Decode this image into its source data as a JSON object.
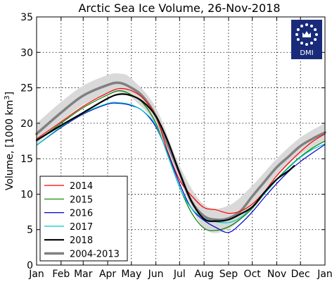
{
  "chart_data": {
    "type": "line",
    "title": "Arctic Sea Ice Volume, 26-Nov-2018",
    "xlabel": "",
    "ylabel": "Volume, [1000 km",
    "ylabel_sup": "3",
    "ylabel_suffix": "]",
    "xlim": [
      0,
      365
    ],
    "ylim": [
      0,
      35
    ],
    "grid": true,
    "legend_position": "lower-left",
    "x_ticks": [
      {
        "label": "Jan",
        "day": 0
      },
      {
        "label": "Feb",
        "day": 31
      },
      {
        "label": "Mar",
        "day": 59
      },
      {
        "label": "Apr",
        "day": 90
      },
      {
        "label": "May",
        "day": 120
      },
      {
        "label": "Jun",
        "day": 151
      },
      {
        "label": "Jul",
        "day": 181
      },
      {
        "label": "Aug",
        "day": 212
      },
      {
        "label": "Sep",
        "day": 243
      },
      {
        "label": "Oct",
        "day": 273
      },
      {
        "label": "Nov",
        "day": 304
      },
      {
        "label": "Dec",
        "day": 334
      },
      {
        "label": "Jan",
        "day": 365
      }
    ],
    "y_ticks": [
      0,
      5,
      10,
      15,
      20,
      25,
      30,
      35
    ],
    "band": {
      "x": [
        0,
        31,
        59,
        90,
        105,
        120,
        151,
        181,
        212,
        243,
        273,
        304,
        334,
        365
      ],
      "upper": [
        20.0,
        23.0,
        25.3,
        26.8,
        27.0,
        26.3,
        22.2,
        14.0,
        8.5,
        8.4,
        11.2,
        15.0,
        18.0,
        20.0
      ],
      "lower": [
        17.0,
        20.2,
        22.6,
        24.0,
        24.3,
        23.6,
        19.8,
        12.0,
        5.2,
        5.1,
        8.2,
        12.5,
        15.6,
        17.4
      ]
    },
    "series": [
      {
        "name": "2014",
        "color": "#ff0000",
        "x": [
          0,
          31,
          59,
          90,
          105,
          120,
          135,
          151,
          166,
          181,
          196,
          212,
          227,
          243,
          258,
          273,
          288,
          304,
          319,
          334,
          349,
          365
        ],
        "y": [
          17.8,
          20.2,
          22.4,
          24.3,
          24.9,
          24.6,
          23.5,
          21.0,
          16.0,
          12.0,
          9.8,
          8.1,
          7.8,
          7.3,
          7.6,
          8.6,
          10.3,
          12.6,
          14.4,
          16.0,
          17.4,
          18.5
        ]
      },
      {
        "name": "2015",
        "color": "#008000",
        "x": [
          0,
          31,
          59,
          90,
          105,
          120,
          135,
          151,
          166,
          181,
          196,
          212,
          227,
          243,
          258,
          273,
          288,
          304,
          319,
          334,
          349,
          365
        ],
        "y": [
          17.5,
          20.0,
          22.2,
          24.0,
          24.6,
          24.0,
          22.8,
          20.0,
          15.5,
          11.0,
          7.4,
          5.2,
          4.9,
          5.4,
          6.5,
          8.0,
          10.0,
          12.1,
          13.8,
          15.3,
          16.5,
          17.5
        ]
      },
      {
        "name": "2016",
        "color": "#0000cc",
        "x": [
          0,
          31,
          59,
          90,
          105,
          120,
          135,
          151,
          166,
          181,
          196,
          212,
          227,
          243,
          258,
          273,
          288,
          304,
          319,
          334,
          349,
          365
        ],
        "y": [
          16.9,
          19.4,
          21.3,
          22.7,
          22.8,
          22.5,
          21.7,
          19.5,
          15.8,
          11.5,
          8.0,
          6.3,
          5.3,
          4.6,
          5.8,
          7.5,
          9.5,
          11.5,
          13.2,
          14.6,
          15.8,
          17.0
        ]
      },
      {
        "name": "2017",
        "color": "#00c8c8",
        "x": [
          0,
          31,
          59,
          90,
          105,
          120,
          135,
          151,
          166,
          181,
          196,
          212,
          227,
          243,
          258,
          273,
          288,
          304,
          319,
          334,
          349,
          365
        ],
        "y": [
          16.9,
          19.5,
          21.4,
          22.8,
          22.9,
          22.6,
          21.7,
          19.7,
          15.6,
          11.0,
          8.0,
          6.6,
          6.1,
          6.0,
          6.7,
          8.2,
          10.0,
          12.0,
          13.7,
          15.2,
          16.3,
          17.1
        ]
      },
      {
        "name": "2018",
        "color": "#000000",
        "x": [
          0,
          31,
          59,
          90,
          105,
          120,
          135,
          151,
          166,
          181,
          196,
          212,
          227,
          243,
          258,
          273,
          288,
          304,
          319,
          326
        ],
        "y": [
          17.6,
          19.7,
          21.5,
          23.5,
          24.1,
          23.9,
          23.0,
          21.0,
          17.5,
          13.0,
          9.0,
          6.5,
          6.2,
          6.4,
          7.2,
          8.2,
          10.2,
          12.1,
          13.3,
          14.0
        ]
      },
      {
        "name": "2004-2013",
        "color": "#808080",
        "x": [
          0,
          31,
          59,
          90,
          105,
          120,
          135,
          151,
          166,
          181,
          196,
          212,
          227,
          243,
          258,
          273,
          288,
          304,
          319,
          334,
          349,
          365
        ],
        "y": [
          18.5,
          21.5,
          23.9,
          25.4,
          25.7,
          25.0,
          23.7,
          21.0,
          17.0,
          13.0,
          9.0,
          6.9,
          6.4,
          6.6,
          7.6,
          9.7,
          11.7,
          13.8,
          15.3,
          16.8,
          17.8,
          18.7
        ]
      }
    ]
  },
  "logo": {
    "text": "DMI",
    "color": "#1a2a7a"
  }
}
